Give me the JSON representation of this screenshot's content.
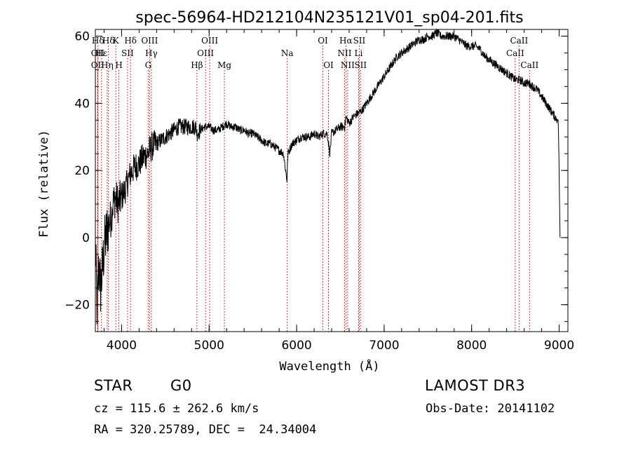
{
  "chart_data": {
    "type": "line",
    "title": "spec-56964-HD212104N235121V01_sp04-201.fits",
    "xlabel": "Wavelength (Å)",
    "ylabel": "Flux (relative)",
    "xlim": [
      3700,
      9100
    ],
    "ylim": [
      -28,
      62
    ],
    "xticks": [
      4000,
      5000,
      6000,
      7000,
      8000,
      9000
    ],
    "yticks": [
      -20,
      0,
      20,
      40,
      60
    ],
    "grid": false,
    "series": [
      {
        "name": "flux",
        "x": [
          3700,
          3720,
          3740,
          3760,
          3780,
          3800,
          3820,
          3850,
          3880,
          3900,
          3930,
          3960,
          4000,
          4050,
          4100,
          4150,
          4200,
          4250,
          4300,
          4340,
          4400,
          4450,
          4500,
          4550,
          4600,
          4650,
          4700,
          4750,
          4800,
          4850,
          4861,
          4900,
          4950,
          5000,
          5050,
          5100,
          5150,
          5200,
          5250,
          5300,
          5350,
          5400,
          5450,
          5500,
          5550,
          5600,
          5650,
          5700,
          5750,
          5800,
          5850,
          5890,
          5900,
          5950,
          6000,
          6050,
          6100,
          6150,
          6200,
          6250,
          6300,
          6350,
          6380,
          6400,
          6450,
          6500,
          6550,
          6563,
          6600,
          6650,
          6700,
          6750,
          6800,
          6850,
          6900,
          6950,
          7000,
          7050,
          7100,
          7150,
          7200,
          7250,
          7300,
          7350,
          7400,
          7450,
          7500,
          7550,
          7600,
          7650,
          7700,
          7750,
          7800,
          7850,
          7900,
          7950,
          8000,
          8050,
          8100,
          8150,
          8200,
          8250,
          8300,
          8350,
          8400,
          8450,
          8500,
          8550,
          8600,
          8650,
          8700,
          8750,
          8800,
          8850,
          8900,
          8950,
          8990,
          9000,
          9010
        ],
        "y": [
          -2,
          -22,
          -8,
          -15,
          -10,
          -3,
          0,
          4,
          6,
          10,
          12,
          10,
          12,
          15,
          19,
          21,
          22,
          24,
          25,
          27,
          28,
          29,
          30,
          31,
          32,
          33,
          33,
          33,
          33,
          33,
          31,
          32,
          33,
          33,
          32,
          32,
          33,
          34,
          33,
          33,
          32,
          32,
          31,
          31,
          30,
          29,
          28,
          28,
          27,
          26,
          25,
          17,
          25,
          28,
          29,
          30,
          30,
          30,
          31,
          30,
          31,
          31,
          25,
          31,
          32,
          33,
          33,
          36,
          34,
          36,
          37,
          38,
          40,
          42,
          44,
          46,
          48,
          50,
          52,
          54,
          55,
          56,
          57,
          58,
          59,
          59,
          60,
          60,
          61,
          60,
          60,
          60,
          60,
          59,
          58,
          57,
          57,
          57,
          56,
          54,
          53,
          52,
          51,
          50,
          49,
          48,
          47,
          47,
          46,
          46,
          45,
          44,
          42,
          40,
          38,
          36,
          35,
          20,
          0
        ]
      }
    ],
    "lines": [
      {
        "label": "Hδ",
        "x": 3730,
        "row": 1
      },
      {
        "label": "OII",
        "x": 3727,
        "row": 2
      },
      {
        "label": "OII",
        "x": 3727,
        "row": 3
      },
      {
        "label": "Hε",
        "x": 3770,
        "row": 2
      },
      {
        "label": "Hη",
        "x": 3835,
        "row": 3
      },
      {
        "label": "Hδ",
        "x": 3850,
        "row": 1
      },
      {
        "label": "K",
        "x": 3934,
        "row": 1
      },
      {
        "label": "H",
        "x": 3969,
        "row": 3
      },
      {
        "label": "SII",
        "x": 4068,
        "row": 2
      },
      {
        "label": "Hδ",
        "x": 4102,
        "row": 1
      },
      {
        "label": "OIII",
        "x": 4320,
        "row": 1
      },
      {
        "label": "Hγ",
        "x": 4340,
        "row": 2
      },
      {
        "label": "G",
        "x": 4304,
        "row": 3
      },
      {
        "label": "Hβ",
        "x": 4861,
        "row": 3
      },
      {
        "label": "OIII",
        "x": 4959,
        "row": 2
      },
      {
        "label": "OIII",
        "x": 5007,
        "row": 1
      },
      {
        "label": "Mg",
        "x": 5175,
        "row": 3
      },
      {
        "label": "Na",
        "x": 5893,
        "row": 2
      },
      {
        "label": "OI",
        "x": 6300,
        "row": 1
      },
      {
        "label": "OI",
        "x": 6364,
        "row": 3
      },
      {
        "label": "Hα",
        "x": 6563,
        "row": 1
      },
      {
        "label": "NII",
        "x": 6548,
        "row": 2
      },
      {
        "label": "NII",
        "x": 6583,
        "row": 3
      },
      {
        "label": "SII",
        "x": 6716,
        "row": 1
      },
      {
        "label": "Li",
        "x": 6708,
        "row": 2
      },
      {
        "label": "SII",
        "x": 6731,
        "row": 3
      },
      {
        "label": "CaII",
        "x": 8498,
        "row": 2
      },
      {
        "label": "CaII",
        "x": 8542,
        "row": 1
      },
      {
        "label": "CaII",
        "x": 8662,
        "row": 3
      }
    ]
  },
  "info": {
    "object_class": "STAR",
    "subclass": "G0",
    "survey": "LAMOST DR3",
    "cz": "cz = 115.6 ± 262.6 km/s",
    "obs_date": "Obs-Date: 20141102",
    "radec": "RA = 320.25789, DEC =  24.34004"
  }
}
